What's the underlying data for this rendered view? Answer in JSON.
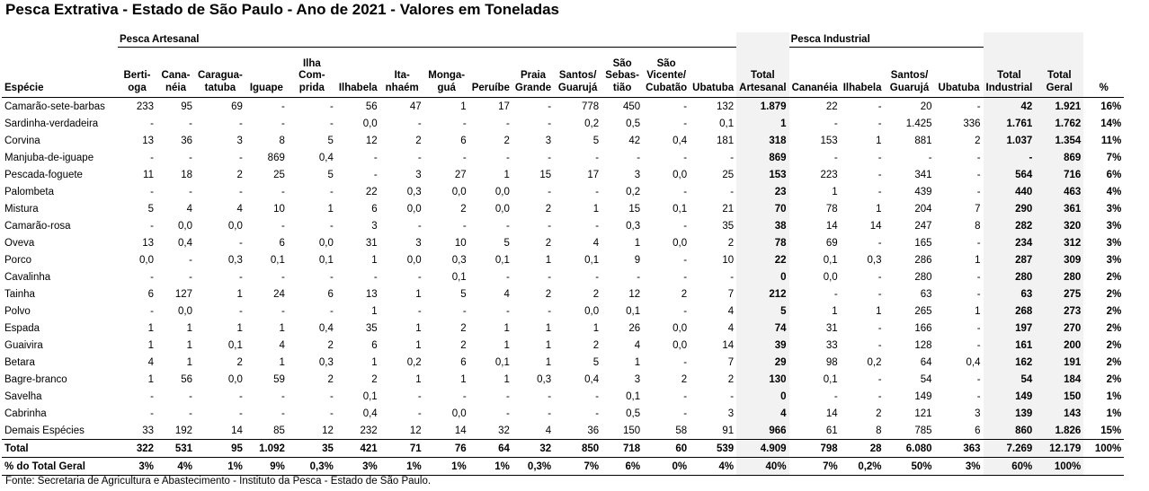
{
  "title": "Pesca Extrativa - Estado de São Paulo - Ano de 2021 - Valores em Toneladas",
  "footer": "Fonte: Secretaria de Agricultura e Abastecimento - Instituto da Pesca - Estado de São Paulo.",
  "groups": {
    "artesanal": "Pesca Artesanal",
    "industrial": "Pesca Industrial"
  },
  "headers": {
    "especie": "Espécie",
    "art": [
      "Berti-\noga",
      "Cana-\nnéia",
      "Caragua-\ntatuba",
      "Iguape",
      "Ilha Com-\nprida",
      "Ilhabela",
      "Ita-\nnhaém",
      "Monga-\nguá",
      "Peruíbe",
      "Praia\nGrande",
      "Santos/\nGuarujá",
      "São\nSebas-\ntião",
      "São\nVicente/\nCubatão",
      "Ubatuba"
    ],
    "total_art": "Total\nArtesanal",
    "ind": [
      "Cananéia",
      "Ilhabela",
      "Santos/\nGuarujá",
      "Ubatuba"
    ],
    "total_ind": "Total\nIndustrial",
    "total_geral": "Total\nGeral",
    "pct": "%"
  },
  "rows": [
    {
      "name": "Camarão-sete-barbas",
      "art": [
        "233",
        "95",
        "69",
        "-",
        "-",
        "56",
        "47",
        "1",
        "17",
        "-",
        "778",
        "450",
        "-",
        "132"
      ],
      "tart": "1.879",
      "ind": [
        "22",
        "-",
        "20",
        "-"
      ],
      "tind": "42",
      "tg": "1.921",
      "pct": "16%"
    },
    {
      "name": "Sardinha-verdadeira",
      "art": [
        "-",
        "-",
        "-",
        "-",
        "-",
        "0,0",
        "-",
        "-",
        "-",
        "-",
        "0,2",
        "0,5",
        "-",
        "0,1"
      ],
      "tart": "1",
      "ind": [
        "-",
        "-",
        "1.425",
        "336"
      ],
      "tind": "1.761",
      "tg": "1.762",
      "pct": "14%"
    },
    {
      "name": "Corvina",
      "art": [
        "13",
        "36",
        "3",
        "8",
        "5",
        "12",
        "2",
        "6",
        "2",
        "3",
        "5",
        "42",
        "0,4",
        "181"
      ],
      "tart": "318",
      "ind": [
        "153",
        "1",
        "881",
        "2"
      ],
      "tind": "1.037",
      "tg": "1.354",
      "pct": "11%"
    },
    {
      "name": "Manjuba-de-iguape",
      "art": [
        "-",
        "-",
        "-",
        "869",
        "0,4",
        "-",
        "-",
        "-",
        "-",
        "-",
        "-",
        "-",
        "-",
        "-"
      ],
      "tart": "869",
      "ind": [
        "-",
        "-",
        "-",
        "-"
      ],
      "tind": "-",
      "tg": "869",
      "pct": "7%"
    },
    {
      "name": "Pescada-foguete",
      "art": [
        "11",
        "18",
        "2",
        "25",
        "5",
        "-",
        "3",
        "27",
        "1",
        "15",
        "17",
        "3",
        "0,0",
        "25"
      ],
      "tart": "153",
      "ind": [
        "223",
        "-",
        "341",
        "-"
      ],
      "tind": "564",
      "tg": "716",
      "pct": "6%"
    },
    {
      "name": "Palombeta",
      "art": [
        "-",
        "-",
        "-",
        "-",
        "-",
        "22",
        "0,3",
        "0,0",
        "0,0",
        "-",
        "-",
        "0,2",
        "-",
        "-"
      ],
      "tart": "23",
      "ind": [
        "1",
        "-",
        "439",
        "-"
      ],
      "tind": "440",
      "tg": "463",
      "pct": "4%"
    },
    {
      "name": "Mistura",
      "art": [
        "5",
        "4",
        "4",
        "10",
        "1",
        "6",
        "0,0",
        "2",
        "0,0",
        "2",
        "1",
        "15",
        "0,1",
        "21"
      ],
      "tart": "70",
      "ind": [
        "78",
        "1",
        "204",
        "7"
      ],
      "tind": "290",
      "tg": "361",
      "pct": "3%"
    },
    {
      "name": "Camarão-rosa",
      "art": [
        "-",
        "0,0",
        "0,0",
        "-",
        "-",
        "3",
        "-",
        "-",
        "-",
        "-",
        "-",
        "0,3",
        "-",
        "35"
      ],
      "tart": "38",
      "ind": [
        "14",
        "14",
        "247",
        "8"
      ],
      "tind": "282",
      "tg": "320",
      "pct": "3%"
    },
    {
      "name": "Oveva",
      "art": [
        "13",
        "0,4",
        "-",
        "6",
        "0,0",
        "31",
        "3",
        "10",
        "5",
        "2",
        "4",
        "1",
        "0,0",
        "2"
      ],
      "tart": "78",
      "ind": [
        "69",
        "-",
        "165",
        "-"
      ],
      "tind": "234",
      "tg": "312",
      "pct": "3%"
    },
    {
      "name": "Porco",
      "art": [
        "0,0",
        "-",
        "0,3",
        "0,1",
        "0,1",
        "1",
        "0,0",
        "0,3",
        "0,1",
        "1",
        "0,1",
        "9",
        "-",
        "10"
      ],
      "tart": "22",
      "ind": [
        "0,1",
        "0,3",
        "286",
        "1"
      ],
      "tind": "287",
      "tg": "309",
      "pct": "3%"
    },
    {
      "name": "Cavalinha",
      "art": [
        "-",
        "-",
        "-",
        "-",
        "-",
        "-",
        "-",
        "0,1",
        "-",
        "-",
        "-",
        "-",
        "-",
        "-"
      ],
      "tart": "0",
      "ind": [
        "0,0",
        "-",
        "280",
        "-"
      ],
      "tind": "280",
      "tg": "280",
      "pct": "2%"
    },
    {
      "name": "Tainha",
      "art": [
        "6",
        "127",
        "1",
        "24",
        "6",
        "13",
        "1",
        "5",
        "4",
        "2",
        "2",
        "12",
        "2",
        "7"
      ],
      "tart": "212",
      "ind": [
        "-",
        "-",
        "63",
        "-"
      ],
      "tind": "63",
      "tg": "275",
      "pct": "2%"
    },
    {
      "name": "Polvo",
      "art": [
        "-",
        "0,0",
        "-",
        "-",
        "-",
        "1",
        "-",
        "-",
        "-",
        "-",
        "0,0",
        "0,1",
        "-",
        "4"
      ],
      "tart": "5",
      "ind": [
        "1",
        "1",
        "265",
        "1"
      ],
      "tind": "268",
      "tg": "273",
      "pct": "2%"
    },
    {
      "name": "Espada",
      "art": [
        "1",
        "1",
        "1",
        "1",
        "0,4",
        "35",
        "1",
        "2",
        "1",
        "1",
        "1",
        "26",
        "0,0",
        "4"
      ],
      "tart": "74",
      "ind": [
        "31",
        "-",
        "166",
        "-"
      ],
      "tind": "197",
      "tg": "270",
      "pct": "2%"
    },
    {
      "name": "Guaivira",
      "art": [
        "1",
        "1",
        "0,1",
        "4",
        "2",
        "6",
        "1",
        "2",
        "1",
        "1",
        "2",
        "4",
        "0,0",
        "14"
      ],
      "tart": "39",
      "ind": [
        "33",
        "-",
        "128",
        "-"
      ],
      "tind": "161",
      "tg": "200",
      "pct": "2%"
    },
    {
      "name": "Betara",
      "art": [
        "4",
        "1",
        "2",
        "1",
        "0,3",
        "1",
        "0,2",
        "6",
        "0,1",
        "1",
        "5",
        "1",
        "-",
        "7"
      ],
      "tart": "29",
      "ind": [
        "98",
        "0,2",
        "64",
        "0,4"
      ],
      "tind": "162",
      "tg": "191",
      "pct": "2%"
    },
    {
      "name": "Bagre-branco",
      "art": [
        "1",
        "56",
        "0,0",
        "59",
        "2",
        "2",
        "1",
        "1",
        "1",
        "0,3",
        "0,4",
        "3",
        "2",
        "2"
      ],
      "tart": "130",
      "ind": [
        "0,1",
        "-",
        "54",
        "-"
      ],
      "tind": "54",
      "tg": "184",
      "pct": "2%"
    },
    {
      "name": "Savelha",
      "art": [
        "-",
        "-",
        "-",
        "-",
        "-",
        "0,1",
        "-",
        "-",
        "-",
        "-",
        "-",
        "0,1",
        "-",
        "-"
      ],
      "tart": "0",
      "ind": [
        "-",
        "-",
        "149",
        "-"
      ],
      "tind": "149",
      "tg": "150",
      "pct": "1%"
    },
    {
      "name": "Cabrinha",
      "art": [
        "-",
        "-",
        "-",
        "-",
        "-",
        "0,4",
        "-",
        "0,0",
        "-",
        "-",
        "-",
        "0,5",
        "-",
        "3"
      ],
      "tart": "4",
      "ind": [
        "14",
        "2",
        "121",
        "3"
      ],
      "tind": "139",
      "tg": "143",
      "pct": "1%"
    },
    {
      "name": "Demais Espécies",
      "art": [
        "33",
        "192",
        "14",
        "85",
        "12",
        "232",
        "12",
        "14",
        "32",
        "4",
        "36",
        "150",
        "58",
        "91"
      ],
      "tart": "966",
      "ind": [
        "61",
        "8",
        "785",
        "6"
      ],
      "tind": "860",
      "tg": "1.826",
      "pct": "15%"
    }
  ],
  "total": {
    "name": "Total",
    "art": [
      "322",
      "531",
      "95",
      "1.092",
      "35",
      "421",
      "71",
      "76",
      "64",
      "32",
      "850",
      "718",
      "60",
      "539"
    ],
    "tart": "4.909",
    "ind": [
      "798",
      "28",
      "6.080",
      "363"
    ],
    "tind": "7.269",
    "tg": "12.179",
    "pct": "100%"
  },
  "pct_total": {
    "name": "% do Total Geral",
    "art": [
      "3%",
      "4%",
      "1%",
      "9%",
      "0,3%",
      "3%",
      "1%",
      "1%",
      "1%",
      "0,3%",
      "7%",
      "6%",
      "0%",
      "4%"
    ],
    "tart": "40%",
    "ind": [
      "7%",
      "0,2%",
      "50%",
      "3%"
    ],
    "tind": "60%",
    "tg": "100%",
    "pct": ""
  }
}
